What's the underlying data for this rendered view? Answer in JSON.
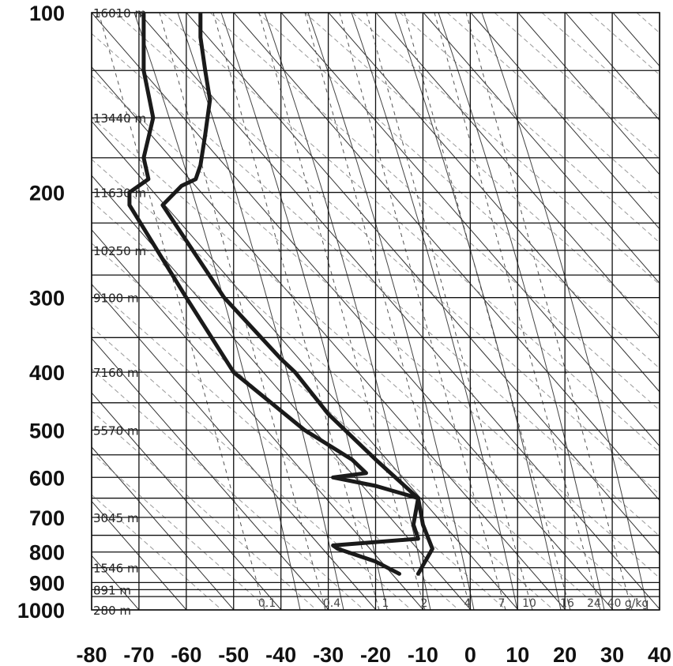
{
  "chart_data": {
    "type": "line",
    "title": "",
    "xlabel": "",
    "ylabel": "",
    "xlim": [
      -80,
      40
    ],
    "ylim": [
      1000,
      100
    ],
    "x_ticks": [
      -80,
      -70,
      -60,
      -50,
      -40,
      -30,
      -20,
      -10,
      0,
      10,
      20,
      30,
      40
    ],
    "y_ticks": [
      100,
      200,
      300,
      400,
      500,
      600,
      700,
      800,
      900,
      1000
    ],
    "height_labels": [
      {
        "p": 100,
        "label": "16010 m"
      },
      {
        "p": 150,
        "label": "13440 m"
      },
      {
        "p": 200,
        "label": "11630 m"
      },
      {
        "p": 250,
        "label": "10250 m"
      },
      {
        "p": 300,
        "label": "9100 m"
      },
      {
        "p": 400,
        "label": "7160 m"
      },
      {
        "p": 500,
        "label": "5570 m"
      },
      {
        "p": 700,
        "label": "3045 m"
      },
      {
        "p": 850,
        "label": "1546 m"
      },
      {
        "p": 925,
        "label": "891 m"
      },
      {
        "p": 1000,
        "label": "280 m"
      }
    ],
    "mixing_ratio_labels": [
      "0.1",
      "0.4",
      "1",
      "2",
      "4",
      "7",
      "10",
      "16",
      "24",
      "40 g/kg"
    ],
    "series": [
      {
        "points": [
          [
            -57,
            100
          ],
          [
            -57,
            110
          ],
          [
            -56,
            125
          ],
          [
            -55,
            140
          ],
          [
            -56,
            160
          ],
          [
            -57,
            180
          ],
          [
            -58,
            190
          ],
          [
            -61,
            195
          ],
          [
            -65,
            210
          ],
          [
            -52,
            300
          ],
          [
            -40,
            380
          ],
          [
            -37,
            400
          ],
          [
            -30,
            470
          ],
          [
            -20,
            560
          ],
          [
            -11,
            650
          ],
          [
            -10,
            720
          ],
          [
            -8,
            790
          ],
          [
            -11,
            870
          ]
        ]
      },
      {
        "points": [
          [
            -69,
            100
          ],
          [
            -69,
            125
          ],
          [
            -67,
            150
          ],
          [
            -69,
            175
          ],
          [
            -68,
            190
          ],
          [
            -72,
            200
          ],
          [
            -72,
            210
          ],
          [
            -60,
            300
          ],
          [
            -50,
            400
          ],
          [
            -35,
            500
          ],
          [
            -25,
            560
          ],
          [
            -22,
            590
          ],
          [
            -29,
            600
          ],
          [
            -20,
            620
          ],
          [
            -11,
            650
          ],
          [
            -12,
            720
          ],
          [
            -11,
            760
          ],
          [
            -29,
            780
          ],
          [
            -28,
            790
          ],
          [
            -20,
            830
          ],
          [
            -15,
            870
          ]
        ]
      }
    ]
  }
}
